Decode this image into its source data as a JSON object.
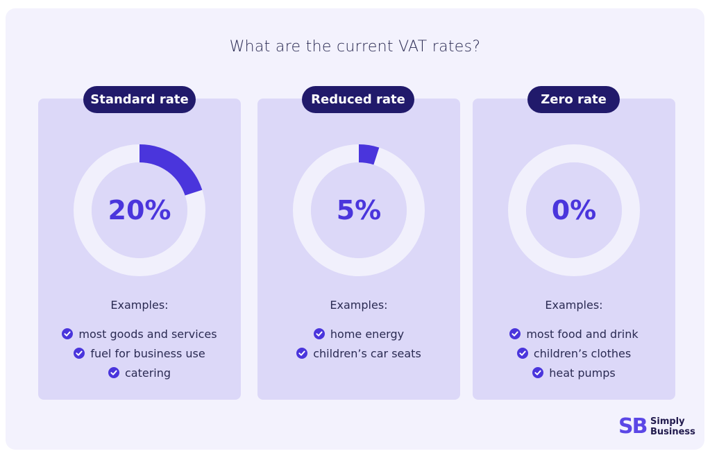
{
  "title": "What are the current VAT rates?",
  "colors": {
    "background": "#f3f2fd",
    "card": "#dcd8f8",
    "ring": "#f1f0fc",
    "accent": "#4a35dc",
    "pill": "#211a6b",
    "text": "#2a2a52"
  },
  "chart_data": {
    "type": "pie",
    "charts": [
      {
        "label": "Standard rate",
        "value_label": "20%",
        "value": 20,
        "examples_label": "Examples:",
        "examples": [
          "most goods and services",
          "fuel for business use",
          "catering"
        ]
      },
      {
        "label": "Reduced rate",
        "value_label": "5%",
        "value": 5,
        "examples_label": "Examples:",
        "examples": [
          "home energy",
          "children’s car seats"
        ]
      },
      {
        "label": "Zero rate",
        "value_label": "0%",
        "value": 0,
        "examples_label": "Examples:",
        "examples": [
          "most food and drink",
          "children’s clothes",
          "heat pumps"
        ]
      }
    ]
  },
  "logo": {
    "mark": "SB",
    "line1": "Simply",
    "line2": "Business"
  }
}
